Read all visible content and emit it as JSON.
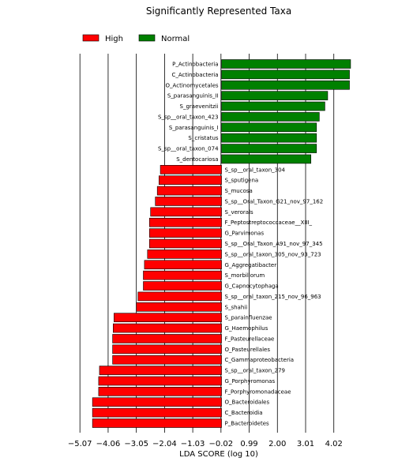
{
  "chart_data": {
    "type": "bar",
    "orientation": "horizontal",
    "title": "Significantly Represented Taxa",
    "xlabel": "LDA SCORE (log 10)",
    "ylabel": "",
    "xlim": [
      -5.5,
      5.3
    ],
    "xticks": [
      "−5.07",
      "−4.06",
      "−3.05",
      "−2.04",
      "−1.03",
      "−0.02",
      "0.99",
      "2.00",
      "3.01",
      "4.02"
    ],
    "xtick_values": [
      -5.07,
      -4.06,
      -3.05,
      -2.04,
      -1.03,
      -0.02,
      0.99,
      2.0,
      3.01,
      4.02
    ],
    "grid": true,
    "legend_position": "top-left",
    "colors": {
      "High": "#ff0000",
      "Normal": "#008000",
      "edge": "#000000"
    },
    "series": [
      {
        "name": "High",
        "color": "#ff0000"
      },
      {
        "name": "Normal",
        "color": "#008000"
      }
    ],
    "bars": [
      {
        "label": "P_Actinobacteria",
        "value": 4.62,
        "group": "Normal"
      },
      {
        "label": "C_Actinobacteria",
        "value": 4.58,
        "group": "Normal"
      },
      {
        "label": "O_Actinomycetales",
        "value": 4.58,
        "group": "Normal"
      },
      {
        "label": "S_parasanguinis_II",
        "value": 3.8,
        "group": "Normal"
      },
      {
        "label": "S_graevenitzii",
        "value": 3.7,
        "group": "Normal"
      },
      {
        "label": "S_sp__oral_taxon_423",
        "value": 3.5,
        "group": "Normal"
      },
      {
        "label": "S_parasanguinis_I",
        "value": 3.4,
        "group": "Normal"
      },
      {
        "label": "S_cristatus",
        "value": 3.4,
        "group": "Normal"
      },
      {
        "label": "S_sp__oral_taxon_074",
        "value": 3.4,
        "group": "Normal"
      },
      {
        "label": "S_dentocariosa",
        "value": 3.2,
        "group": "Normal"
      },
      {
        "label": "S_sp__oral_taxon_304",
        "value": -2.19,
        "group": "High"
      },
      {
        "label": "S_sputigena",
        "value": -2.24,
        "group": "High"
      },
      {
        "label": "S_mucosa",
        "value": -2.3,
        "group": "High"
      },
      {
        "label": "S_sp__Oral_Taxon_G21_nov_97_162",
        "value": -2.37,
        "group": "High"
      },
      {
        "label": "S_verorals",
        "value": -2.54,
        "group": "High"
      },
      {
        "label": "F_Peptostreptococcaceae__XIII_",
        "value": -2.58,
        "group": "High"
      },
      {
        "label": "G_Parvimonas",
        "value": -2.58,
        "group": "High"
      },
      {
        "label": "S_sp__Oral_Taxon_A91_nov_97_345",
        "value": -2.58,
        "group": "High"
      },
      {
        "label": "S_sp__oral_taxon_305_nov_93_723",
        "value": -2.65,
        "group": "High"
      },
      {
        "label": "G_Aggregatibacter",
        "value": -2.76,
        "group": "High"
      },
      {
        "label": "S_morbillorum",
        "value": -2.8,
        "group": "High"
      },
      {
        "label": "G_Capnocytophaga",
        "value": -2.8,
        "group": "High"
      },
      {
        "label": "S_sp__oral_taxon_215_nov_96_963",
        "value": -2.99,
        "group": "High"
      },
      {
        "label": "S_shahii",
        "value": -3.05,
        "group": "High"
      },
      {
        "label": "S_parainfluenzae",
        "value": -3.85,
        "group": "High"
      },
      {
        "label": "G_Haemophilus",
        "value": -3.88,
        "group": "High"
      },
      {
        "label": "F_Pasteurellaceae",
        "value": -3.9,
        "group": "High"
      },
      {
        "label": "O_Pasteurellales",
        "value": -3.9,
        "group": "High"
      },
      {
        "label": "C_Gammaproteobacteria",
        "value": -3.9,
        "group": "High"
      },
      {
        "label": "S_sp__oral_taxon_279",
        "value": -4.37,
        "group": "High"
      },
      {
        "label": "G_Porphyromonas",
        "value": -4.4,
        "group": "High"
      },
      {
        "label": "F_Porphyromonadaceae",
        "value": -4.4,
        "group": "High"
      },
      {
        "label": "O_Bacteroidales",
        "value": -4.62,
        "group": "High"
      },
      {
        "label": "C_Bacteroidia",
        "value": -4.62,
        "group": "High"
      },
      {
        "label": "P_Bacteroidetes",
        "value": -4.62,
        "group": "High"
      }
    ]
  }
}
